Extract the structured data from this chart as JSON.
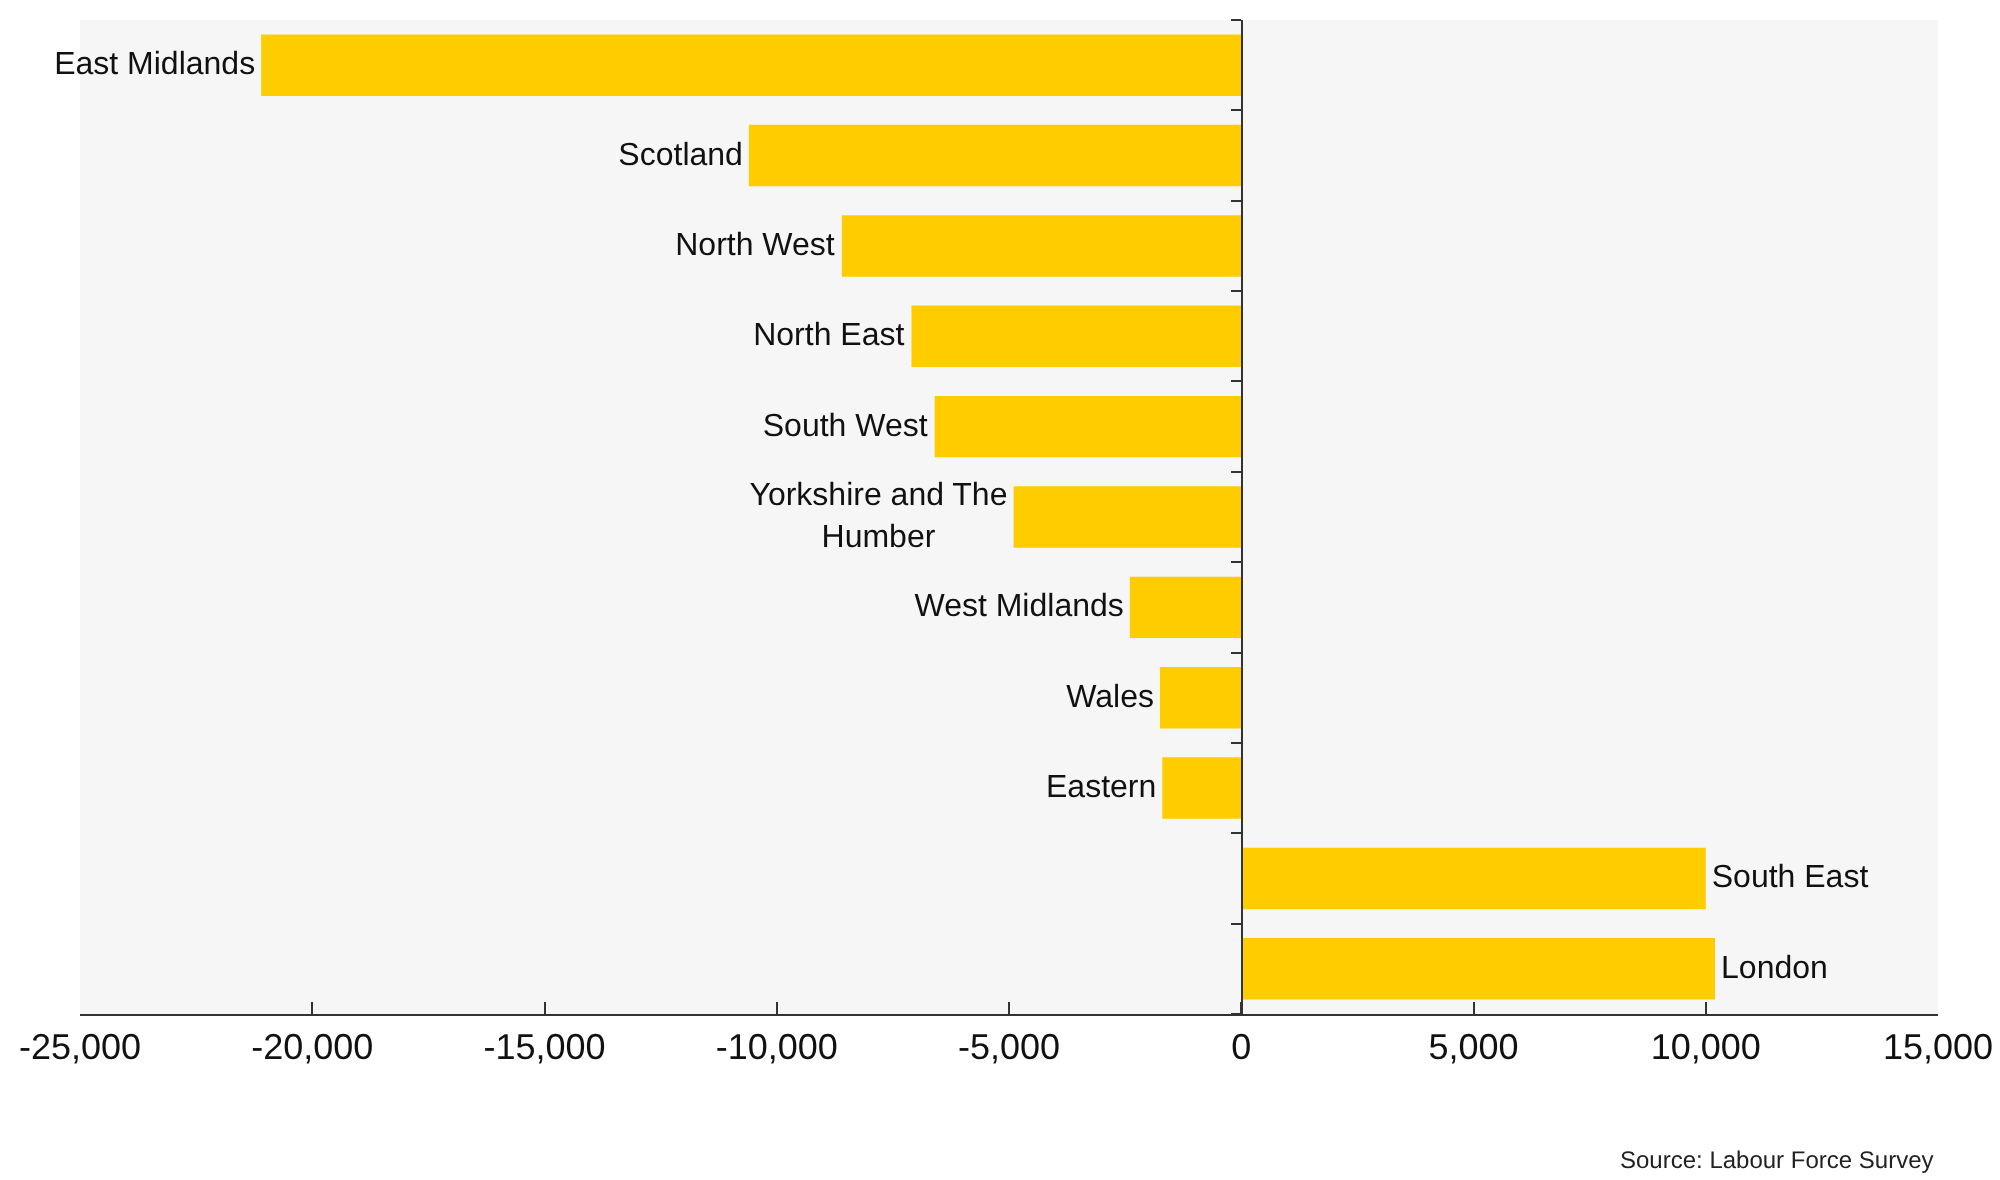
{
  "chart_data": {
    "type": "bar",
    "orientation": "horizontal",
    "color": "#ffcc00",
    "categories": [
      "East Midlands",
      "Scotland",
      "North West",
      "North East",
      "South West",
      "Yorkshire and The Humber",
      "West Midlands",
      "Wales",
      "Eastern",
      "South East",
      "London"
    ],
    "values": [
      -21100,
      -10600,
      -8600,
      -7100,
      -6600,
      -4900,
      -2400,
      -1750,
      -1700,
      10000,
      10200
    ],
    "xlim": [
      -25000,
      15000
    ],
    "xticks": [
      {
        "value": -25000,
        "label": "-25,000"
      },
      {
        "value": -20000,
        "label": "-20,000"
      },
      {
        "value": -15000,
        "label": "-15,000"
      },
      {
        "value": -10000,
        "label": "-10,000"
      },
      {
        "value": -5000,
        "label": "-5,000"
      },
      0,
      {
        "value": 5000,
        "label": "5,000"
      },
      {
        "value": 10000,
        "label": "10,000"
      },
      {
        "value": 15000,
        "label": "15,000"
      }
    ],
    "tick_labels": "x",
    "annotations": [
      "Source: Labour Force Survey"
    ]
  }
}
